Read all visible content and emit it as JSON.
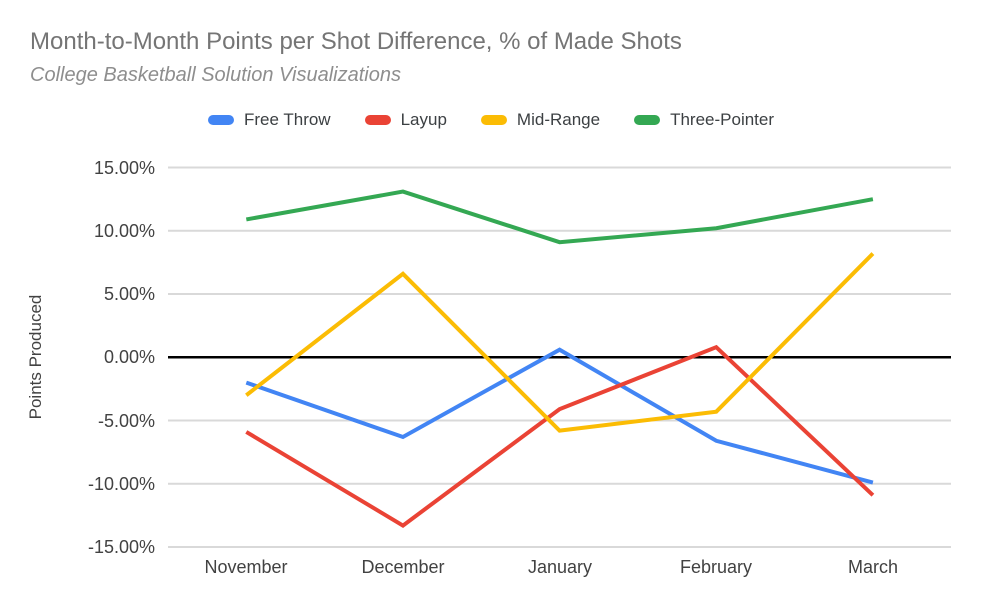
{
  "header": {
    "title": "Month-to-Month Points per Shot Difference, % of Made Shots",
    "subtitle": "College Basketball Solution Visualizations"
  },
  "chart_data": {
    "type": "line",
    "title": "Month-to-Month Points per Shot Difference, % of Made Shots",
    "subtitle": "College Basketball Solution Visualizations",
    "xlabel": "",
    "ylabel": "Points Produced",
    "ylim": [
      -15,
      15
    ],
    "unit": "%",
    "grid": true,
    "legend_position": "top",
    "gridline_color": "#d9d9d9",
    "zero_line_color": "#000000",
    "categories": [
      "November",
      "December",
      "January",
      "February",
      "March"
    ],
    "y_ticks": {
      "values": [
        15,
        10,
        5,
        0,
        -5,
        -10,
        -15
      ],
      "labels": [
        "15.00%",
        "10.00%",
        "5.00%",
        "0.00%",
        "-5.00%",
        "-10.00%",
        "-15.00%"
      ]
    },
    "series": [
      {
        "name": "Free Throw",
        "color": "#4285f4",
        "values": [
          -2.0,
          -6.3,
          0.6,
          -6.6,
          -9.9
        ]
      },
      {
        "name": "Layup",
        "color": "#ea4335",
        "values": [
          -5.9,
          -13.3,
          -4.1,
          0.8,
          -10.9
        ]
      },
      {
        "name": "Mid-Range",
        "color": "#fbbc04",
        "values": [
          -3.0,
          6.6,
          -5.8,
          -4.3,
          8.2
        ]
      },
      {
        "name": "Three-Pointer",
        "color": "#34a853",
        "values": [
          10.9,
          13.1,
          9.1,
          10.2,
          12.5
        ]
      }
    ]
  }
}
